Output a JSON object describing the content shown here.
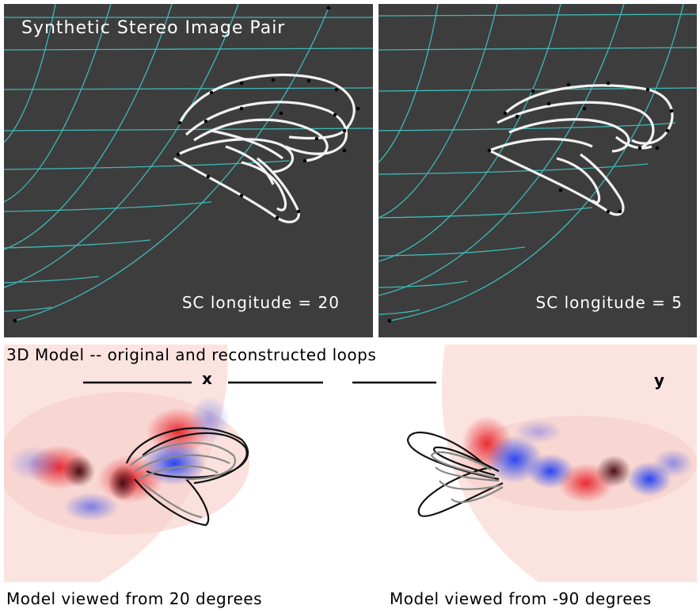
{
  "stereo_pair": {
    "title": "Synthetic Stereo Image Pair",
    "left_label": "SC longitude = 20",
    "right_label": "SC longitude = 5"
  },
  "model": {
    "heading": "3D Model -- original and reconstructed loops",
    "x_axis_label": "x",
    "y_axis_label": "y",
    "left_caption": "Model viewed from 20 degrees",
    "right_caption": "Model viewed from -90 degrees"
  },
  "colors": {
    "panel_background": "#3d3d3d",
    "grid": "#3fb8b8",
    "loop_white": "#f2f2f2",
    "magnetogram_positive": "#e8242c",
    "magnetogram_negative": "#1f3ef0",
    "loop_original": "#111111",
    "loop_reconstructed": "#888888"
  }
}
